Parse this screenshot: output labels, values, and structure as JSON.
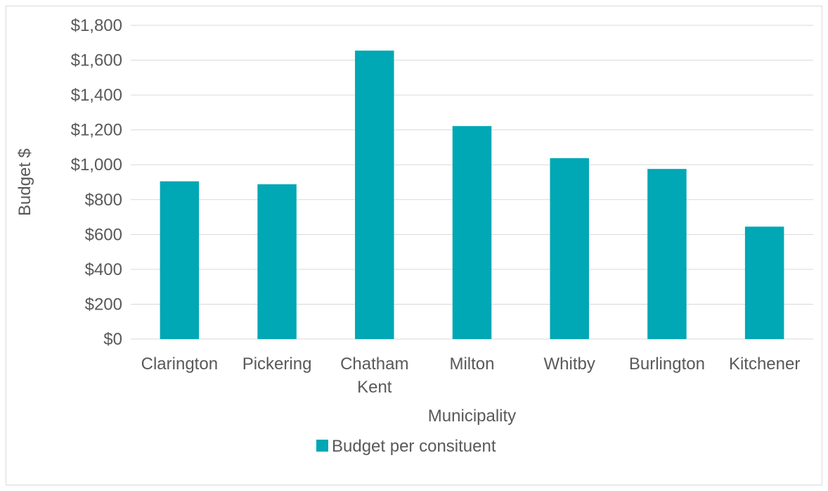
{
  "chart_data": {
    "type": "bar",
    "title": "",
    "xlabel": "Municipality",
    "ylabel": "Budget $",
    "categories": [
      "Clarington",
      "Pickering",
      "Chatham Kent",
      "Milton",
      "Whitby",
      "Burlington",
      "Kitchener"
    ],
    "category_lines": [
      [
        "Clarington"
      ],
      [
        "Pickering"
      ],
      [
        "Chatham",
        "Kent"
      ],
      [
        "Milton"
      ],
      [
        "Whitby"
      ],
      [
        "Burlington"
      ],
      [
        "Kitchener"
      ]
    ],
    "series": [
      {
        "name": "Budget per consituent",
        "color": "#00a7b5",
        "values": [
          905,
          888,
          1655,
          1222,
          1038,
          976,
          645
        ]
      }
    ],
    "ylim": [
      0,
      1800
    ],
    "yticks": [
      0,
      200,
      400,
      600,
      800,
      1000,
      1200,
      1400,
      1600,
      1800
    ],
    "ytick_labels": [
      "$0",
      "$200",
      "$400",
      "$600",
      "$800",
      "$1,000",
      "$1,200",
      "$1,400",
      "$1,600",
      "$1,800"
    ],
    "grid": true,
    "gridline_color": "#d9d9d9",
    "legend_position": "bottom"
  }
}
